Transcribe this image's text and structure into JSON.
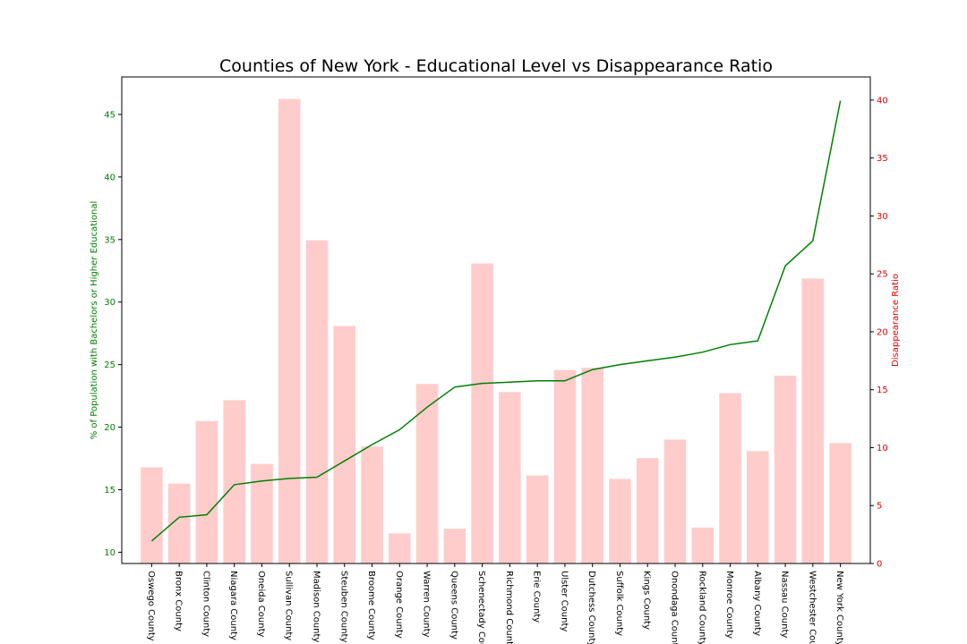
{
  "chart_data": {
    "type": "bar",
    "title": "Counties of New York - Educational Level vs Disappearance Ratio",
    "xlabel": "",
    "ylabel_left": "% of Population with Bachelors or Higher Educational",
    "ylabel_right": "Disappearance Ratio",
    "ylim_left": [
      9.1,
      48.0
    ],
    "ylim_right": [
      0,
      42
    ],
    "yticks_left": [
      10,
      15,
      20,
      25,
      30,
      35,
      40,
      45
    ],
    "yticks_right": [
      0,
      5,
      10,
      15,
      20,
      25,
      30,
      35,
      40
    ],
    "categories": [
      "Oswego County",
      "Bronx County",
      "Clinton County",
      "Niagara County",
      "Oneida County",
      "Sullivan County",
      "Madison County",
      "Steuben County",
      "Broome County",
      "Orange County",
      "Warren County",
      "Queens County",
      "Schenectady County",
      "Richmond County",
      "Erie County",
      "Ulster County",
      "Dutchess County",
      "Suffolk County",
      "Kings County",
      "Onondaga County",
      "Rockland County",
      "Monroe County",
      "Albany County",
      "Nassau County",
      "Westchester County",
      "New York County"
    ],
    "series": [
      {
        "name": "",
        "axis": "right",
        "kind": "bar",
        "color": "#ffcccc",
        "values": [
          8.3,
          6.9,
          12.3,
          14.1,
          8.6,
          40.1,
          27.9,
          20.5,
          10.1,
          2.6,
          15.5,
          3.0,
          25.9,
          14.8,
          7.6,
          16.7,
          16.9,
          7.3,
          9.1,
          10.7,
          3.1,
          14.7,
          9.7,
          16.2,
          24.6,
          10.4
        ]
      },
      {
        "name": "",
        "axis": "left",
        "kind": "line",
        "color": "#008000",
        "values": [
          10.9,
          12.8,
          13.0,
          15.4,
          15.7,
          15.9,
          16.0,
          17.3,
          18.6,
          19.8,
          21.6,
          23.2,
          23.5,
          23.6,
          23.7,
          23.7,
          24.6,
          25.0,
          25.3,
          25.6,
          26.0,
          26.6,
          26.9,
          32.9,
          34.9,
          46.1
        ]
      }
    ],
    "grid": false,
    "legend": "none"
  }
}
